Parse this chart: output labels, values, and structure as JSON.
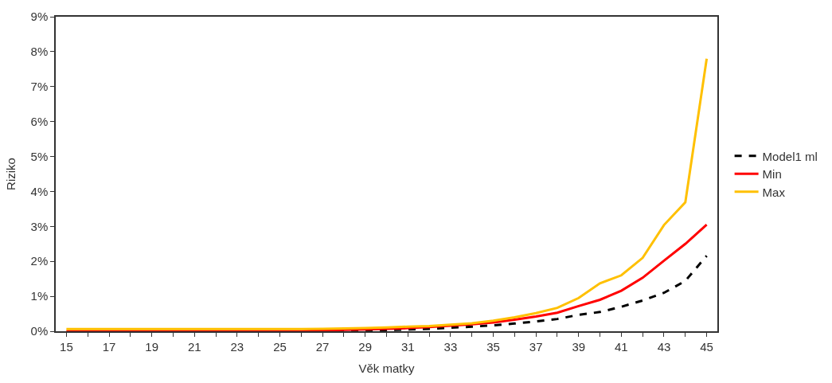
{
  "chart_data": {
    "type": "line",
    "xlabel": "Věk matky",
    "ylabel": "Riziko",
    "x": [
      15,
      16,
      17,
      18,
      19,
      20,
      21,
      22,
      23,
      24,
      25,
      26,
      27,
      28,
      29,
      30,
      31,
      32,
      33,
      34,
      35,
      36,
      37,
      38,
      39,
      40,
      41,
      42,
      43,
      44,
      45
    ],
    "series": [
      {
        "name": "Model1 ml",
        "color": "#000000",
        "line_style": "dashed",
        "values": [
          null,
          null,
          null,
          null,
          null,
          null,
          null,
          null,
          null,
          null,
          null,
          null,
          0.0,
          0.01,
          0.02,
          0.03,
          0.05,
          0.07,
          0.1,
          0.13,
          0.17,
          0.22,
          0.28,
          0.35,
          0.47,
          0.55,
          0.7,
          0.88,
          1.1,
          1.44,
          2.16
        ]
      },
      {
        "name": "Min",
        "color": "#ff0000",
        "line_style": "solid",
        "values": [
          0.0,
          0.0,
          0.0,
          0.0,
          0.0,
          0.0,
          0.0,
          0.0,
          0.0,
          0.0,
          0.0,
          0.0,
          0.02,
          0.04,
          0.05,
          0.07,
          0.09,
          0.12,
          0.16,
          0.2,
          0.25,
          0.33,
          0.42,
          0.53,
          0.72,
          0.9,
          1.16,
          1.53,
          2.02,
          2.5,
          3.05
        ]
      },
      {
        "name": "Max",
        "color": "#ffc000",
        "line_style": "solid",
        "values": [
          0.06,
          0.06,
          0.06,
          0.06,
          0.06,
          0.06,
          0.06,
          0.06,
          0.06,
          0.06,
          0.06,
          0.06,
          0.07,
          0.08,
          0.09,
          0.11,
          0.13,
          0.15,
          0.19,
          0.23,
          0.3,
          0.4,
          0.52,
          0.67,
          0.95,
          1.37,
          1.6,
          2.1,
          3.04,
          3.69,
          7.8
        ]
      }
    ],
    "xlim": [
      14.5,
      45.5
    ],
    "xticks": [
      15,
      {
        "value": 16,
        "label": null
      },
      17,
      {
        "value": 18,
        "label": null
      },
      19,
      {
        "value": 20,
        "label": null
      },
      21,
      {
        "value": 22,
        "label": null
      },
      23,
      {
        "value": 24,
        "label": null
      },
      25,
      {
        "value": 26,
        "label": null
      },
      27,
      {
        "value": 28,
        "label": null
      },
      29,
      {
        "value": 30,
        "label": null
      },
      31,
      {
        "value": 32,
        "label": null
      },
      33,
      {
        "value": 34,
        "label": null
      },
      35,
      {
        "value": 36,
        "label": null
      },
      37,
      {
        "value": 38,
        "label": null
      },
      39,
      {
        "value": 40,
        "label": null
      },
      41,
      {
        "value": 42,
        "label": null
      },
      43,
      {
        "value": 44,
        "label": null
      },
      45
    ],
    "ylim": [
      0,
      9
    ],
    "yticks": [
      {
        "value": 0,
        "label": "0%"
      },
      {
        "value": 1,
        "label": "1%"
      },
      {
        "value": 2,
        "label": "2%"
      },
      {
        "value": 3,
        "label": "3%"
      },
      {
        "value": 4,
        "label": "4%"
      },
      {
        "value": 5,
        "label": "5%"
      },
      {
        "value": 6,
        "label": "6%"
      },
      {
        "value": 7,
        "label": "7%"
      },
      {
        "value": 8,
        "label": "8%"
      },
      {
        "value": 9,
        "label": "9%"
      }
    ],
    "legend": "right",
    "marker": "none"
  }
}
